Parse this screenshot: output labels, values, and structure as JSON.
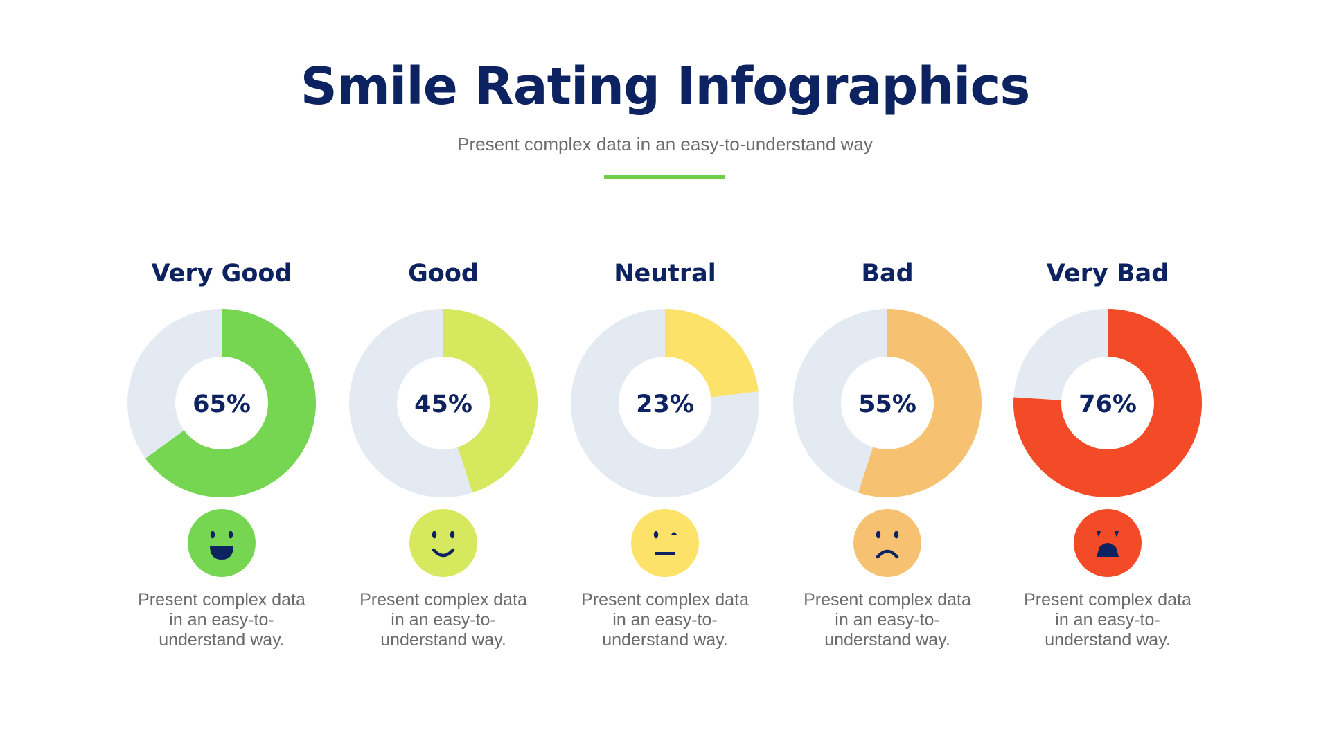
{
  "header": {
    "title": "Smile Rating Infographics",
    "subtitle": "Present complex data in an easy-to-understand way"
  },
  "chart_data": {
    "type": "pie",
    "variant": "donut",
    "track_color": "#e3eaf1",
    "text_color": "#0d2260",
    "items": [
      {
        "label": "Very Good",
        "value": 65,
        "value_label": "65%",
        "color": "#76d651",
        "face": "laughing-face-icon",
        "desc": [
          "Present complex data",
          "in an easy-to-",
          "understand way."
        ]
      },
      {
        "label": "Good",
        "value": 45,
        "value_label": "45%",
        "color": "#d6e85e",
        "face": "smiling-face-icon",
        "desc": [
          "Present complex data",
          "in an easy-to-",
          "understand way."
        ]
      },
      {
        "label": "Neutral",
        "value": 23,
        "value_label": "23%",
        "color": "#fde26a",
        "face": "neutral-face-icon",
        "desc": [
          "Present complex data",
          "in an easy-to-",
          "understand way."
        ]
      },
      {
        "label": "Bad",
        "value": 55,
        "value_label": "55%",
        "color": "#f6c272",
        "face": "frowning-face-icon",
        "desc": [
          "Present complex data",
          "in an easy-to-",
          "understand way."
        ]
      },
      {
        "label": "Very Bad",
        "value": 76,
        "value_label": "76%",
        "color": "#f34b28",
        "face": "angry-face-icon",
        "desc": [
          "Present complex data",
          "in an easy-to-",
          "understand way."
        ]
      }
    ]
  }
}
